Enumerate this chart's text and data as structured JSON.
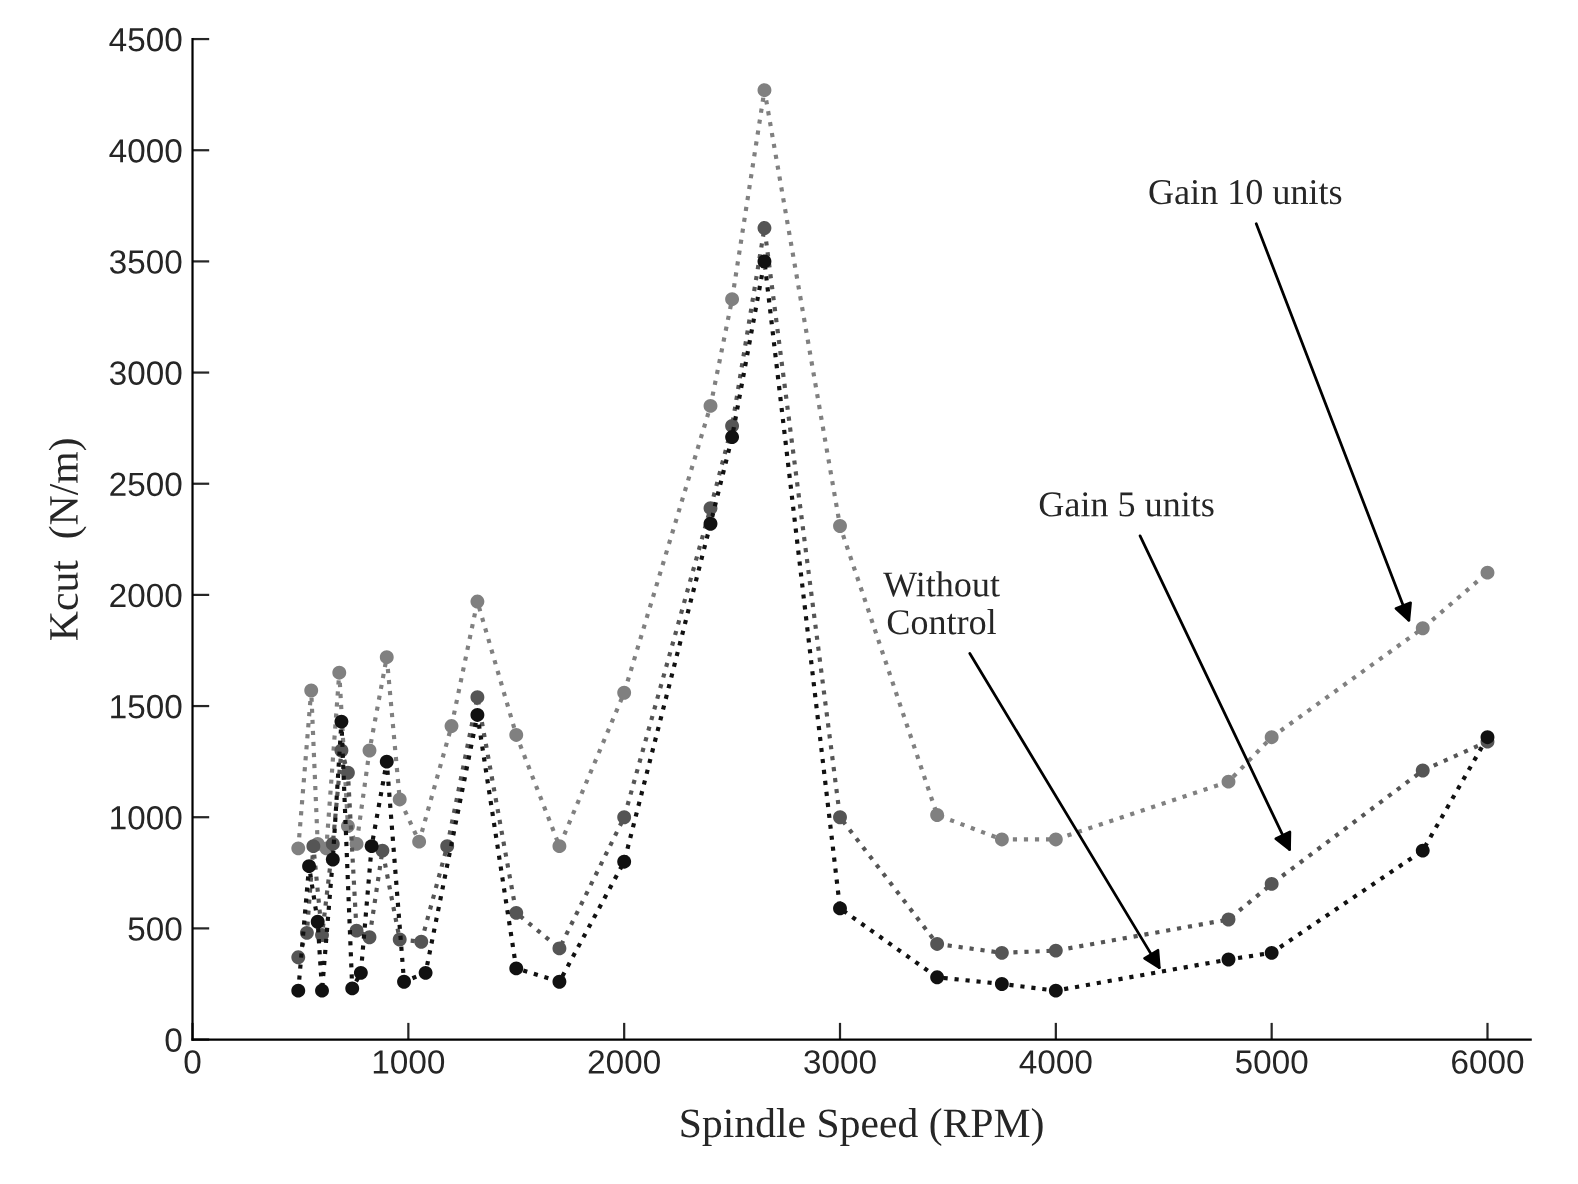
{
  "chart_data": {
    "type": "line",
    "xlabel": "Spindle Speed (RPM)",
    "ylabel": "Kcut  (N/m)",
    "xlim": [
      0,
      6200
    ],
    "ylim": [
      0,
      4500
    ],
    "xticks": [
      0,
      1000,
      2000,
      3000,
      4000,
      5000,
      6000
    ],
    "yticks": [
      0,
      500,
      1000,
      1500,
      2000,
      2500,
      3000,
      3500,
      4000,
      4500
    ],
    "grid": false,
    "marker": "circle",
    "line_style": "dotted",
    "series": [
      {
        "color": "#808080",
        "x": [
          490,
          550,
          580,
          620,
          680,
          720,
          760,
          820,
          900,
          960,
          1050,
          1200,
          1320,
          1500,
          1700,
          2000,
          2400,
          2500,
          2650,
          3000,
          3450,
          3750,
          4000,
          4800,
          5000,
          5700,
          6000
        ],
        "values": [
          860,
          1570,
          880,
          860,
          1650,
          960,
          880,
          1300,
          1720,
          1080,
          890,
          1410,
          1970,
          1370,
          870,
          1560,
          2850,
          3330,
          4270,
          2310,
          1010,
          900,
          900,
          1160,
          1360,
          1850,
          2100
        ]
      },
      {
        "color": "#555555",
        "x": [
          490,
          530,
          560,
          600,
          650,
          690,
          720,
          760,
          820,
          880,
          960,
          1060,
          1180,
          1320,
          1500,
          1700,
          2000,
          2400,
          2500,
          2650,
          3000,
          3450,
          3750,
          4000,
          4800,
          5000,
          5700,
          6000
        ],
        "values": [
          370,
          480,
          870,
          470,
          880,
          1300,
          1200,
          490,
          460,
          850,
          450,
          440,
          870,
          1540,
          570,
          410,
          1000,
          2390,
          2760,
          3650,
          1000,
          430,
          390,
          400,
          540,
          700,
          1210,
          1340
        ]
      },
      {
        "color": "#111111",
        "x": [
          490,
          540,
          580,
          600,
          650,
          690,
          740,
          780,
          830,
          900,
          980,
          1080,
          1320,
          1500,
          1700,
          2000,
          2400,
          2500,
          2650,
          3000,
          3450,
          3750,
          4000,
          4800,
          5000,
          5700,
          6000
        ],
        "values": [
          220,
          780,
          530,
          220,
          810,
          1430,
          230,
          300,
          870,
          1250,
          260,
          300,
          1460,
          320,
          260,
          800,
          2320,
          2710,
          3500,
          590,
          280,
          250,
          220,
          360,
          390,
          850,
          1360
        ]
      }
    ],
    "annotations": [
      {
        "text": "Gain 10 units",
        "x": 5650,
        "y": 1850
      },
      {
        "text": "Gain 5 units",
        "x": 5100,
        "y": 820
      },
      {
        "text": "Without\nControl",
        "x": 4500,
        "y": 290
      }
    ]
  }
}
